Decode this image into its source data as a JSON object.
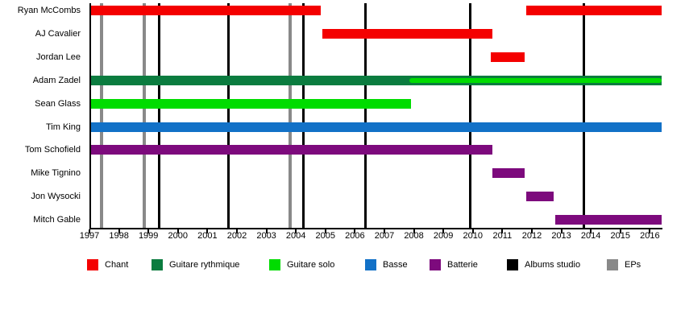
{
  "chart_data": {
    "type": "timeline",
    "title": "",
    "x_range": [
      1997,
      2016.4
    ],
    "x_ticks": [
      "1997",
      "1998",
      "1999",
      "2000",
      "2001",
      "2002",
      "2003",
      "2004",
      "2005",
      "2006",
      "2007",
      "2008",
      "2009",
      "2010",
      "2011",
      "2012",
      "2013",
      "2014",
      "2015",
      "2016"
    ],
    "rows": [
      {
        "name": "Ryan McCombs",
        "role": "Chant",
        "intervals": [
          [
            1997.0,
            2004.85
          ],
          [
            2011.8,
            2016.4
          ]
        ]
      },
      {
        "name": "AJ Cavalier",
        "role": "Chant",
        "intervals": [
          [
            2004.9,
            2010.65
          ]
        ]
      },
      {
        "name": "Jordan Lee",
        "role": "Chant",
        "intervals": [
          [
            2010.6,
            2011.75
          ]
        ]
      },
      {
        "name": "Adam Zadel",
        "role": "Guitare rythmique",
        "intervals": [
          [
            1997.0,
            2016.4
          ]
        ],
        "overlay": {
          "role": "Guitare solo",
          "interval": [
            2007.85,
            2016.4
          ]
        }
      },
      {
        "name": "Sean Glass",
        "role": "Guitare solo",
        "intervals": [
          [
            1997.0,
            2007.9
          ]
        ]
      },
      {
        "name": "Tim King",
        "role": "Basse",
        "intervals": [
          [
            1997.0,
            2016.4
          ]
        ]
      },
      {
        "name": "Tom Schofield",
        "role": "Batterie",
        "intervals": [
          [
            1997.0,
            2010.65
          ]
        ]
      },
      {
        "name": "Mike Tignino",
        "role": "Batterie",
        "intervals": [
          [
            2010.65,
            2011.75
          ]
        ]
      },
      {
        "name": "Jon Wysocki",
        "role": "Batterie",
        "intervals": [
          [
            2011.8,
            2012.75
          ]
        ]
      },
      {
        "name": "Mitch Gable",
        "role": "Batterie",
        "intervals": [
          [
            2012.8,
            2016.4
          ]
        ]
      }
    ],
    "events": [
      {
        "legend_label": "Albums studio",
        "years": [
          1999.35,
          2001.7,
          2004.25,
          2006.35,
          2009.9,
          2013.75
        ]
      },
      {
        "legend_label": "EPs",
        "years": [
          1997.4,
          1998.85,
          2003.8
        ]
      }
    ],
    "legend": [
      {
        "label": "Chant",
        "color": "#F40000"
      },
      {
        "label": "Guitare rythmique",
        "color": "#0B7C3F"
      },
      {
        "label": "Guitare solo",
        "color": "#00DC00"
      },
      {
        "label": "Basse",
        "color": "#1271C7"
      },
      {
        "label": "Batterie",
        "color": "#7D0A7D"
      },
      {
        "label": "Albums studio",
        "color": "#000000"
      },
      {
        "label": "EPs",
        "color": "#898989"
      }
    ]
  }
}
